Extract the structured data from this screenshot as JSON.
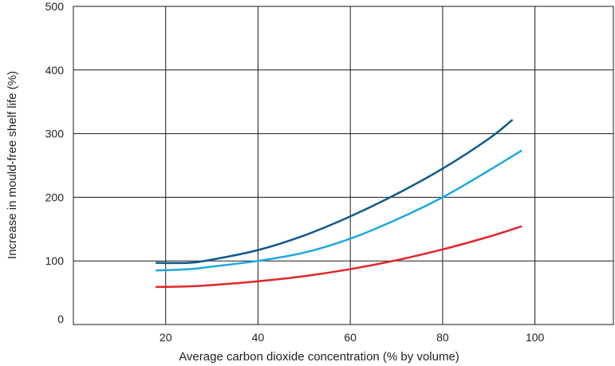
{
  "chart_data": {
    "type": "line",
    "title": "",
    "xlabel": "Average carbon dioxide concentration (% by volume)",
    "ylabel": "Increase in mould-free shelf life (%)",
    "xlim": [
      0,
      117
    ],
    "ylim": [
      0,
      500
    ],
    "x_ticks": [
      20,
      40,
      60,
      80,
      100
    ],
    "y_ticks": [
      0,
      100,
      200,
      300,
      400,
      500
    ],
    "grid": true,
    "series": [
      {
        "color": "#0d5a8c",
        "points": [
          [
            18,
            97
          ],
          [
            25,
            97
          ],
          [
            30,
            102
          ],
          [
            40,
            117
          ],
          [
            50,
            140
          ],
          [
            60,
            170
          ],
          [
            70,
            205
          ],
          [
            80,
            245
          ],
          [
            90,
            292
          ],
          [
            95,
            321
          ]
        ]
      },
      {
        "color": "#1ba9e0",
        "points": [
          [
            18,
            85
          ],
          [
            25,
            87
          ],
          [
            30,
            91
          ],
          [
            40,
            100
          ],
          [
            50,
            113
          ],
          [
            60,
            135
          ],
          [
            70,
            165
          ],
          [
            80,
            200
          ],
          [
            90,
            242
          ],
          [
            97,
            273
          ]
        ]
      },
      {
        "color": "#e0262a",
        "points": [
          [
            18,
            59
          ],
          [
            25,
            60
          ],
          [
            30,
            62
          ],
          [
            40,
            68
          ],
          [
            50,
            76
          ],
          [
            60,
            87
          ],
          [
            70,
            101
          ],
          [
            80,
            118
          ],
          [
            90,
            138
          ],
          [
            97,
            154
          ]
        ]
      }
    ]
  }
}
